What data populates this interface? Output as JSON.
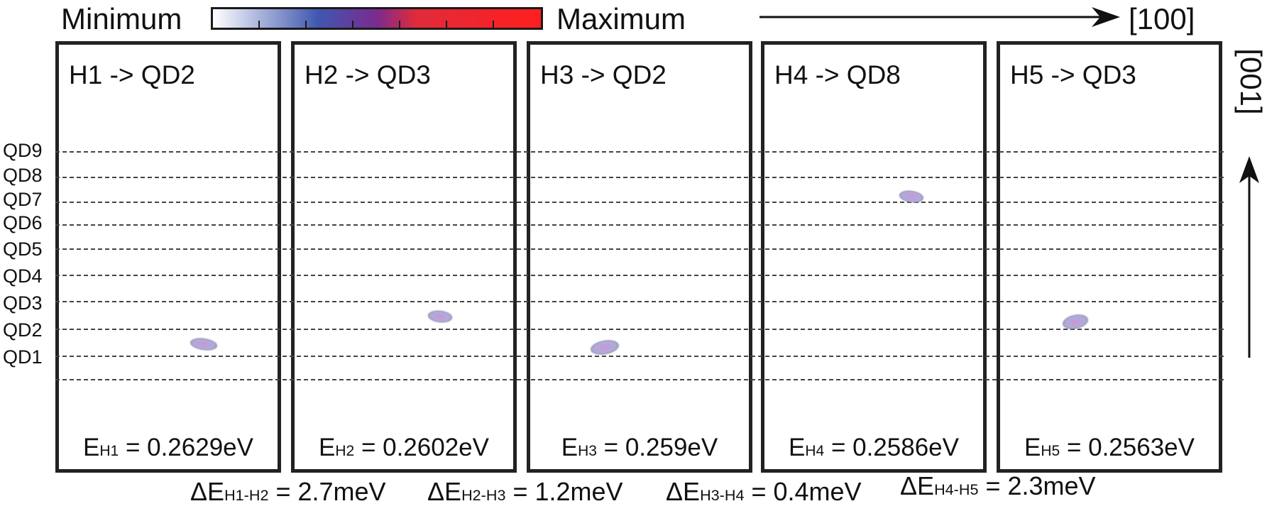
{
  "colorbar": {
    "min_label": "Minimum",
    "max_label": "Maximum",
    "gradient_colors": [
      "#ffffff",
      "#3f57b0",
      "#7a2b8f",
      "#e02b3a",
      "#ff1f1f"
    ]
  },
  "axes": {
    "horizontal_label": "[100]",
    "vertical_label": "[001]"
  },
  "qd_labels": [
    "QD9",
    "QD8",
    "QD7",
    "QD6",
    "QD5",
    "QD4",
    "QD3",
    "QD2",
    "QD1"
  ],
  "panels": [
    {
      "title": "H1 -> QD2",
      "energy_sub": "H1",
      "energy_value": " = 0.2629eV"
    },
    {
      "title": "H2 -> QD3",
      "energy_sub": "H2",
      "energy_value": " = 0.2602eV"
    },
    {
      "title": "H3 -> QD2",
      "energy_sub": "H3",
      "energy_value": " = 0.259eV"
    },
    {
      "title": "H4 -> QD8",
      "energy_sub": "H4",
      "energy_value": " = 0.2586eV"
    },
    {
      "title": "H5 -> QD3",
      "energy_sub": "H5",
      "energy_value": " = 0.2563eV"
    }
  ],
  "energy_symbol": "E",
  "delta_symbol": "ΔE",
  "deltas": [
    {
      "sub": "H1-H2",
      "value": " = 2.7meV"
    },
    {
      "sub": "H2-H3",
      "value": " = 1.2meV"
    },
    {
      "sub": "H3-H4",
      "value": " = 0.4meV"
    },
    {
      "sub": "H4-H5",
      "value": " = 2.3meV"
    }
  ]
}
